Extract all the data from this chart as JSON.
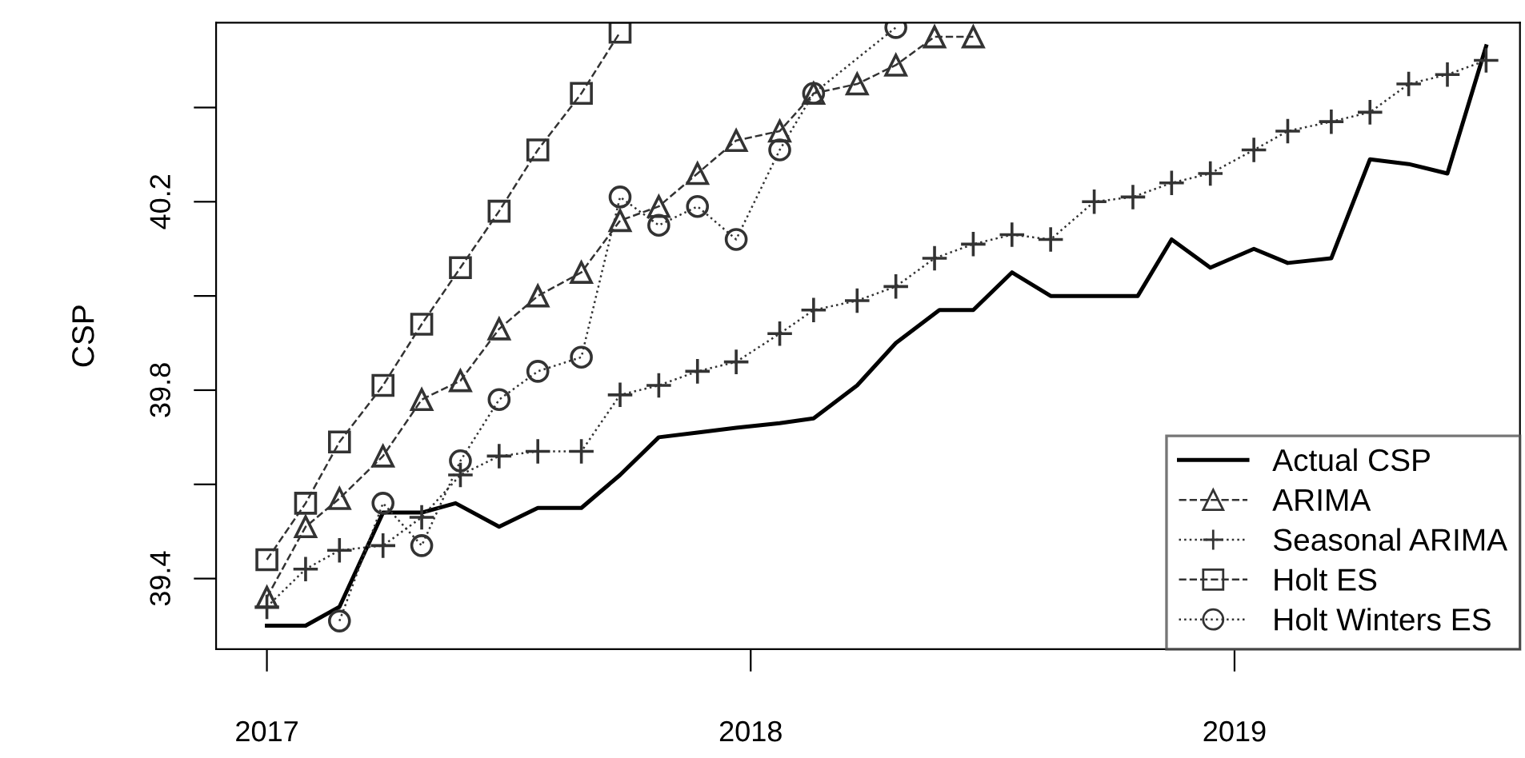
{
  "chart_data": {
    "type": "line",
    "ylabel": "CSP",
    "xlim": [
      2016.895,
      2019.59
    ],
    "ylim": [
      39.25,
      40.58
    ],
    "xticks": [
      2017,
      2018,
      2019
    ],
    "yticks": [
      {
        "value": 39.4,
        "label": "39.4"
      },
      {
        "value": 39.6,
        "label": null
      },
      {
        "value": 39.8,
        "label": "39.8"
      },
      {
        "value": 40.0,
        "label": null
      },
      {
        "value": 40.2,
        "label": "40.2"
      },
      {
        "value": 40.4,
        "label": null
      }
    ],
    "grid": false,
    "legend": "bottom right",
    "series": [
      {
        "name": "Actual CSP",
        "color": "#000000",
        "marker": "none",
        "line_style": "solid",
        "x": [
          2017.0,
          2017.08,
          2017.15,
          2017.24,
          2017.32,
          2017.39,
          2017.48,
          2017.56,
          2017.65,
          2017.73,
          2017.81,
          2017.89,
          2017.97,
          2018.06,
          2018.13,
          2018.22,
          2018.3,
          2018.39,
          2018.46,
          2018.54,
          2018.62,
          2018.8,
          2018.87,
          2018.95,
          2019.04,
          2019.11,
          2019.2,
          2019.28,
          2019.36,
          2019.44,
          2019.52
        ],
        "values": [
          39.3,
          39.3,
          39.34,
          39.54,
          39.54,
          39.56,
          39.51,
          39.55,
          39.55,
          39.62,
          39.7,
          39.71,
          39.72,
          39.73,
          39.74,
          39.81,
          39.9,
          39.97,
          39.97,
          40.05,
          40.0,
          40.0,
          40.12,
          40.06,
          40.1,
          40.07,
          40.08,
          40.29,
          40.28,
          40.26,
          40.53
        ]
      },
      {
        "name": "ARIMA",
        "color": "#333333",
        "marker": "triangle",
        "line_style": "dashed",
        "x": [
          2017.0,
          2017.08,
          2017.15,
          2017.24,
          2017.32,
          2017.4,
          2017.48,
          2017.56,
          2017.65,
          2017.73,
          2017.81,
          2017.89,
          2017.97,
          2018.06,
          2018.13,
          2018.22,
          2018.3,
          2018.38,
          2018.46
        ],
        "values": [
          39.36,
          39.51,
          39.57,
          39.66,
          39.78,
          39.82,
          39.93,
          40.0,
          40.05,
          40.16,
          40.19,
          40.26,
          40.33,
          40.35,
          40.43,
          40.45,
          40.49,
          40.55,
          40.55
        ]
      },
      {
        "name": "Seasonal ARIMA",
        "color": "#333333",
        "marker": "cross",
        "line_style": "dotted",
        "x": [
          2017.0,
          2017.08,
          2017.15,
          2017.24,
          2017.32,
          2017.4,
          2017.48,
          2017.56,
          2017.65,
          2017.73,
          2017.81,
          2017.89,
          2017.97,
          2018.06,
          2018.13,
          2018.22,
          2018.3,
          2018.38,
          2018.46,
          2018.54,
          2018.62,
          2018.71,
          2018.79,
          2018.87,
          2018.95,
          2019.04,
          2019.11,
          2019.2,
          2019.28,
          2019.36,
          2019.44,
          2019.52
        ],
        "values": [
          39.34,
          39.42,
          39.46,
          39.47,
          39.53,
          39.62,
          39.66,
          39.67,
          39.67,
          39.79,
          39.81,
          39.84,
          39.86,
          39.92,
          39.97,
          39.99,
          40.02,
          40.08,
          40.11,
          40.13,
          40.12,
          40.2,
          40.21,
          40.24,
          40.26,
          40.31,
          40.35,
          40.37,
          40.39,
          40.45,
          40.47,
          40.5
        ]
      },
      {
        "name": "Holt ES",
        "color": "#333333",
        "marker": "square",
        "line_style": "dashed",
        "x": [
          2017.0,
          2017.08,
          2017.15,
          2017.24,
          2017.32,
          2017.4,
          2017.48,
          2017.56,
          2017.65,
          2017.73
        ],
        "values": [
          39.44,
          39.56,
          39.69,
          39.81,
          39.94,
          40.06,
          40.18,
          40.31,
          40.43,
          40.56
        ]
      },
      {
        "name": "Holt Winters ES",
        "color": "#333333",
        "marker": "circle",
        "line_style": "dotted",
        "x": [
          2017.15,
          2017.24,
          2017.32,
          2017.4,
          2017.48,
          2017.56,
          2017.65,
          2017.73,
          2017.81,
          2017.89,
          2017.97,
          2018.06,
          2018.13,
          2018.3
        ],
        "values": [
          39.31,
          39.56,
          39.47,
          39.65,
          39.78,
          39.84,
          39.87,
          40.21,
          40.15,
          40.19,
          40.12,
          40.31,
          40.43,
          40.57
        ]
      }
    ]
  }
}
